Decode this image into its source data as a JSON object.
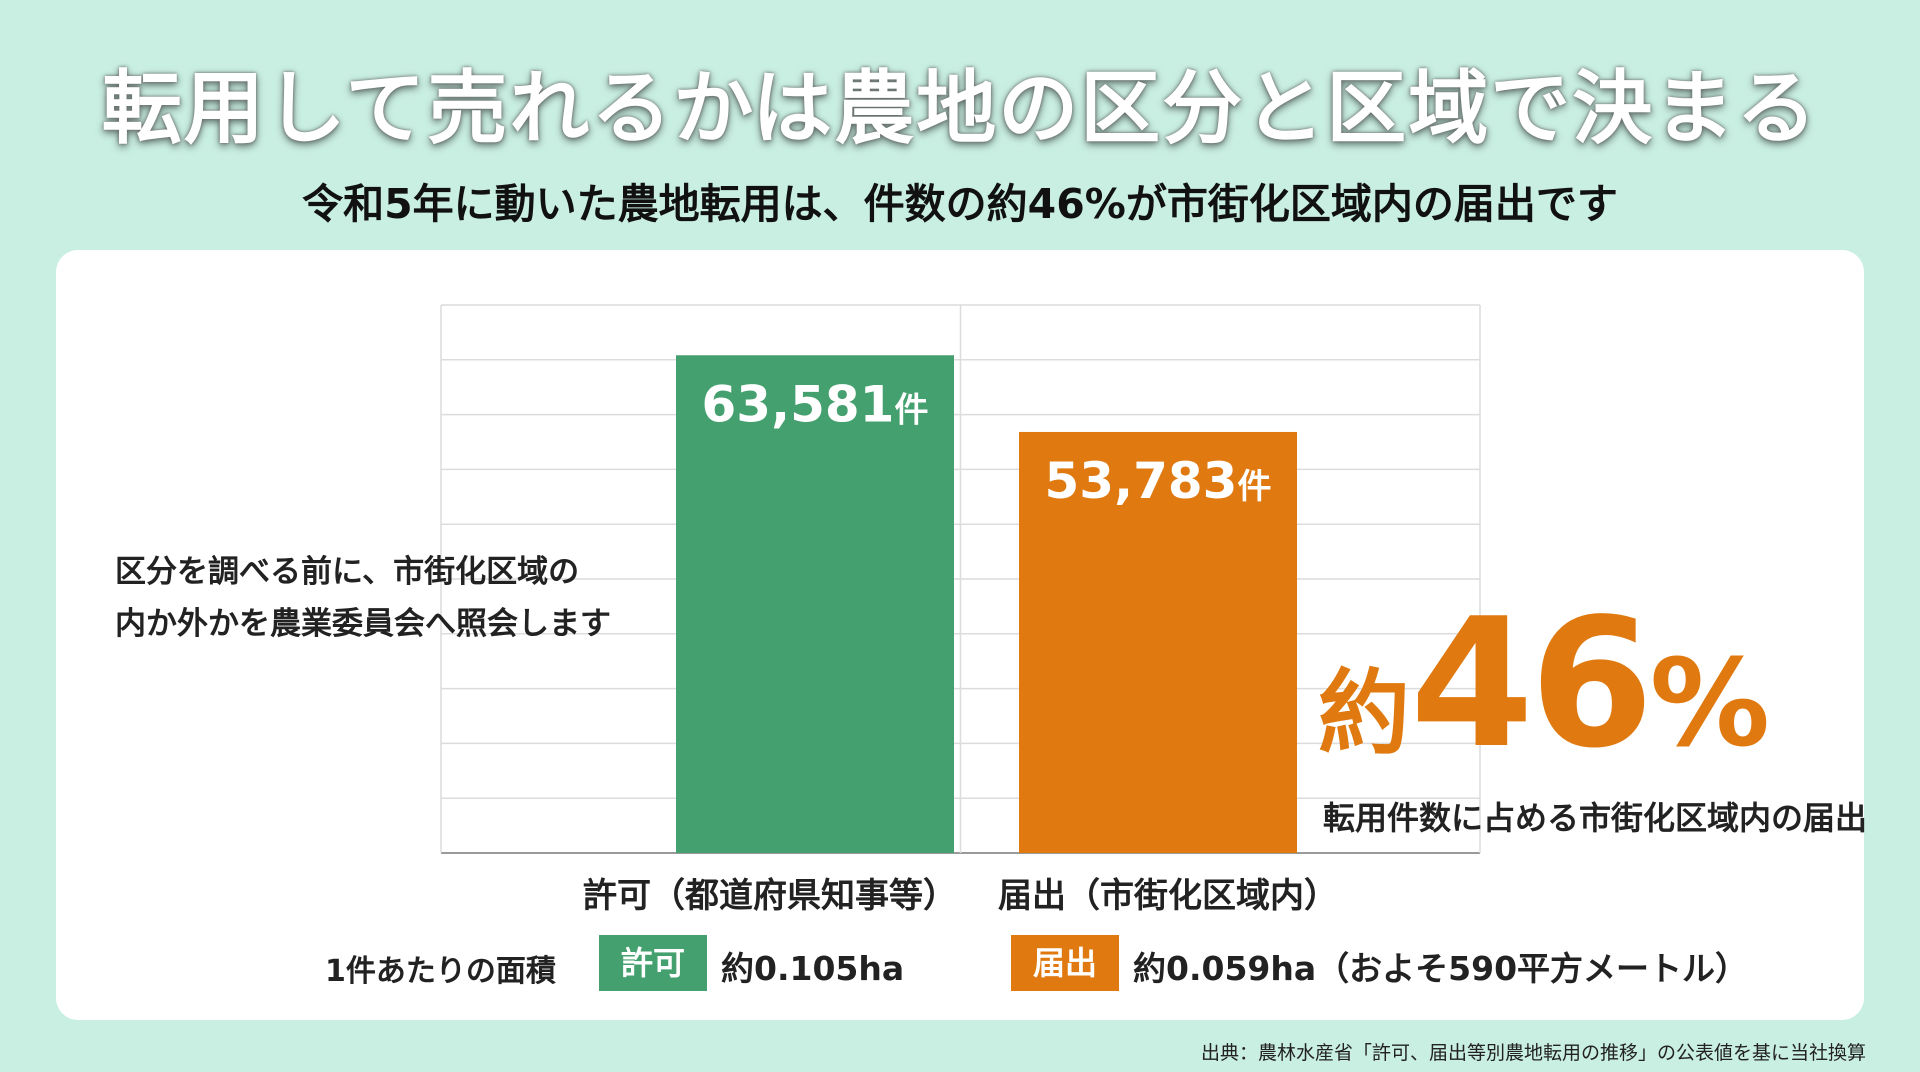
{
  "title": "転用して売れるかは農地の区分と区域で決まる",
  "subtitle": "令和5年に動いた農地転用は、件数の約46%が市街化区域内の届出です",
  "note": {
    "line1": "区分を調べる前に、市街化区域の",
    "line2": "内か外かを農業委員会へ照会します"
  },
  "highlight": {
    "prefix": "約",
    "number": "46",
    "unit": "%",
    "caption": "転用件数に占める市街化区域内の届出"
  },
  "chart_data": {
    "type": "bar",
    "categories": [
      "許可（都道府県知事等）",
      "届出（市街化区域内）"
    ],
    "values": [
      63581,
      53783
    ],
    "value_labels": [
      "63,581",
      "53,783"
    ],
    "value_unit": "件",
    "colors": [
      "#44a06f",
      "#e07a10"
    ],
    "ylim": [
      0,
      70000
    ],
    "grid": true
  },
  "area_per_case": {
    "title": "1件あたりの面積",
    "items": [
      {
        "tag": "許可",
        "value": "約0.105ha",
        "color": "#44a06f"
      },
      {
        "tag": "届出",
        "value": "約0.059ha（およそ590平方メートル）",
        "color": "#e07a10"
      }
    ]
  },
  "source": "出典：農林水産省「許可、届出等別農地転用の推移」の公表値を基に当社換算"
}
